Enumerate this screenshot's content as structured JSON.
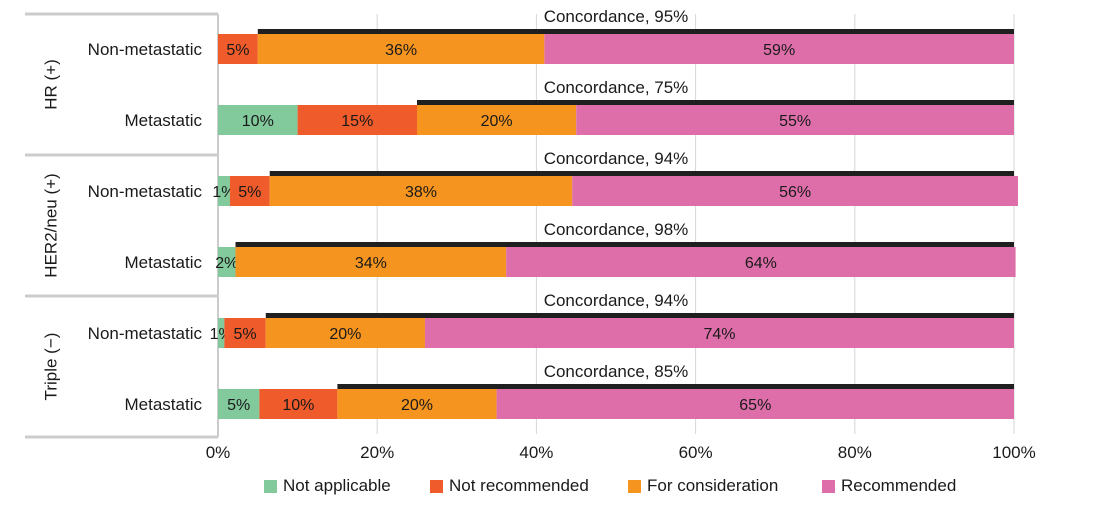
{
  "chart_data": {
    "type": "bar",
    "orientation": "horizontal",
    "stacked": true,
    "groups": [
      {
        "name": "HR (+)",
        "rows": [
          {
            "label": "Non-metastatic",
            "concordance": "Concordance, 95%",
            "values": [
              0,
              5,
              36,
              59
            ],
            "labels": [
              "",
              "5%",
              "36%",
              "59%"
            ]
          },
          {
            "label": "Metastatic",
            "concordance": "Concordance, 75%",
            "values": [
              10,
              15,
              20,
              55
            ],
            "labels": [
              "10%",
              "15%",
              "20%",
              "55%"
            ]
          }
        ]
      },
      {
        "name": "HER2/neu (+)",
        "rows": [
          {
            "label": "Non-metastatic",
            "concordance": "Concordance, 94%",
            "values": [
              1.5,
              5,
              38,
              56
            ],
            "labels": [
              "1%",
              "5%",
              "38%",
              "56%"
            ]
          },
          {
            "label": "Metastatic",
            "concordance": "Concordance, 98%",
            "values": [
              2.2,
              0,
              34,
              64
            ],
            "labels": [
              "2%",
              "",
              "34%",
              "64%"
            ]
          }
        ]
      },
      {
        "name": "Triple (−)",
        "rows": [
          {
            "label": "Non-metastatic",
            "concordance": "Concordance, 94%",
            "values": [
              0.8,
              5.2,
              20,
              74
            ],
            "labels": [
              "1%",
              "5%",
              "20%",
              "74%"
            ]
          },
          {
            "label": "Metastatic",
            "concordance": "Concordance, 85%",
            "values": [
              5.2,
              9.8,
              20,
              65
            ],
            "labels": [
              "5%",
              "10%",
              "20%",
              "65%"
            ]
          }
        ]
      }
    ],
    "series": [
      {
        "name": "Not applicable",
        "color": "#82c99b"
      },
      {
        "name": "Not recommended",
        "color": "#ef5b2a"
      },
      {
        "name": "For consideration",
        "color": "#f5941f"
      },
      {
        "name": "Recommended",
        "color": "#dd6ea9"
      }
    ],
    "concordance_bar_color": "#1f1f1f",
    "grid_color": "#d6d6d6",
    "xlim": [
      0,
      100
    ],
    "xticks": [
      "0%",
      "20%",
      "40%",
      "60%",
      "80%",
      "100%"
    ],
    "grid": true,
    "legend_position": "bottom"
  }
}
